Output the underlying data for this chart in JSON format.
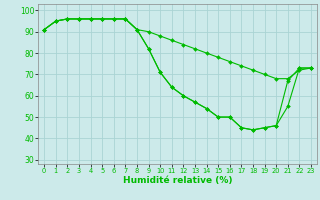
{
  "xlabel": "Humidité relative (%)",
  "bg_color": "#cceaea",
  "grid_color": "#aad4d4",
  "line_color": "#00bb00",
  "xlim": [
    -0.5,
    23.5
  ],
  "ylim": [
    28,
    103
  ],
  "yticks": [
    30,
    40,
    50,
    60,
    70,
    80,
    90,
    100
  ],
  "xticks": [
    0,
    1,
    2,
    3,
    4,
    5,
    6,
    7,
    8,
    9,
    10,
    11,
    12,
    13,
    14,
    15,
    16,
    17,
    18,
    19,
    20,
    21,
    22,
    23
  ],
  "series": [
    [
      91,
      95,
      96,
      96,
      96,
      96,
      96,
      96,
      91,
      82,
      71,
      64,
      60,
      57,
      54,
      50,
      50,
      45,
      44,
      45,
      46,
      67,
      73,
      73
    ],
    [
      91,
      95,
      96,
      96,
      96,
      96,
      96,
      96,
      91,
      82,
      71,
      64,
      60,
      57,
      54,
      50,
      50,
      45,
      44,
      45,
      46,
      55,
      73,
      73
    ],
    [
      91,
      95,
      96,
      96,
      96,
      96,
      96,
      96,
      91,
      90,
      88,
      86,
      84,
      82,
      80,
      78,
      76,
      74,
      72,
      70,
      68,
      68,
      72,
      73
    ]
  ]
}
